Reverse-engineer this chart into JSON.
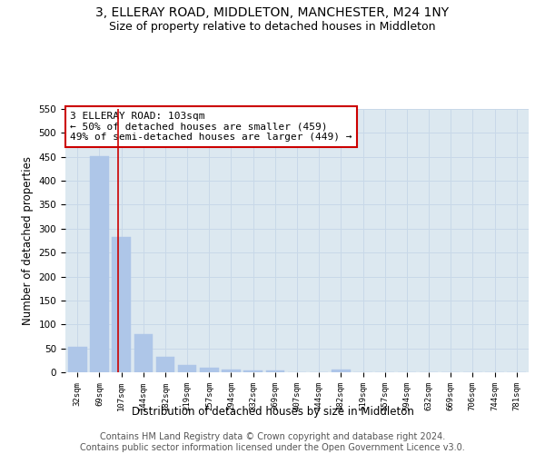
{
  "title1": "3, ELLERAY ROAD, MIDDLETON, MANCHESTER, M24 1NY",
  "title2": "Size of property relative to detached houses in Middleton",
  "xlabel": "Distribution of detached houses by size in Middleton",
  "ylabel": "Number of detached properties",
  "footer1": "Contains HM Land Registry data © Crown copyright and database right 2024.",
  "footer2": "Contains public sector information licensed under the Open Government Licence v3.0.",
  "bar_labels": [
    "32sqm",
    "69sqm",
    "107sqm",
    "144sqm",
    "182sqm",
    "219sqm",
    "257sqm",
    "294sqm",
    "332sqm",
    "369sqm",
    "407sqm",
    "444sqm",
    "482sqm",
    "519sqm",
    "557sqm",
    "594sqm",
    "632sqm",
    "669sqm",
    "706sqm",
    "744sqm",
    "781sqm"
  ],
  "bar_values": [
    53,
    452,
    283,
    79,
    32,
    15,
    9,
    6,
    4,
    4,
    0,
    0,
    5,
    0,
    0,
    0,
    0,
    0,
    0,
    0,
    0
  ],
  "bar_color": "#aec6e8",
  "bar_edgecolor": "#aec6e8",
  "vline_x": 1.85,
  "vline_color": "#cc0000",
  "annotation_text": "3 ELLERAY ROAD: 103sqm\n← 50% of detached houses are smaller (459)\n49% of semi-detached houses are larger (449) →",
  "annotation_box_color": "#ffffff",
  "annotation_box_edgecolor": "#cc0000",
  "ylim": [
    0,
    550
  ],
  "yticks": [
    0,
    50,
    100,
    150,
    200,
    250,
    300,
    350,
    400,
    450,
    500,
    550
  ],
  "grid_color": "#c8d8e8",
  "bg_color": "#dce8f0",
  "title1_fontsize": 10,
  "title2_fontsize": 9,
  "annotation_fontsize": 8,
  "xlabel_fontsize": 8.5,
  "ylabel_fontsize": 8.5,
  "footer_fontsize": 7
}
